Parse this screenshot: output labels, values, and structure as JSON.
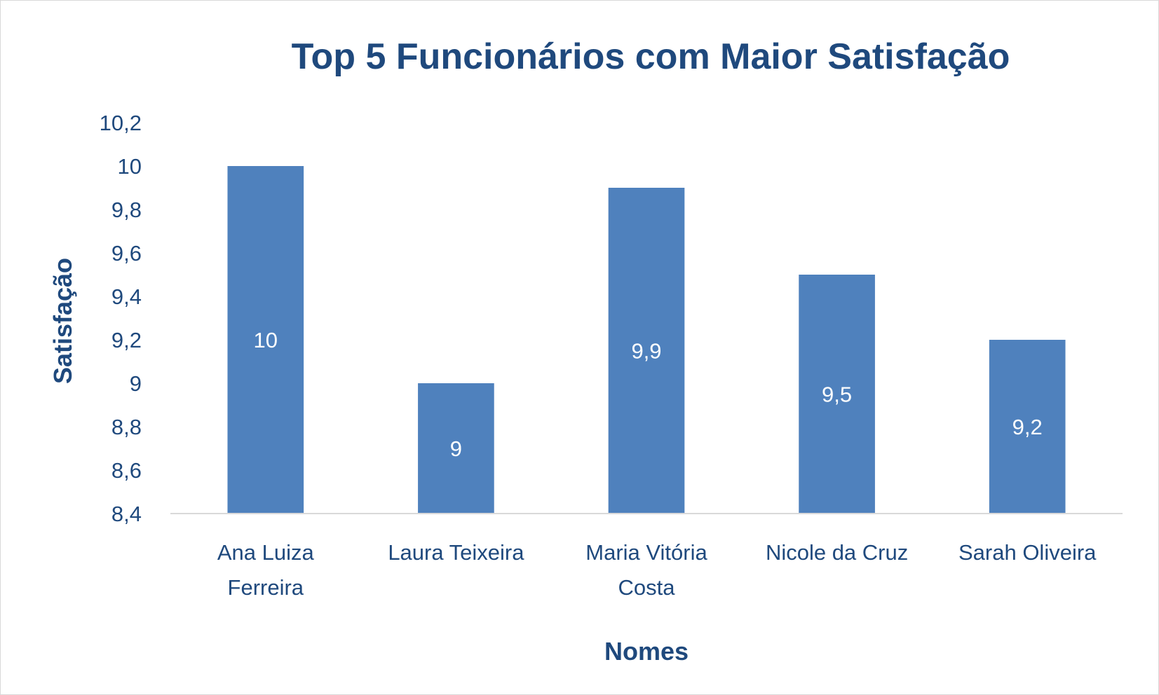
{
  "chart_data": {
    "type": "bar",
    "title": "Top 5 Funcionários com Maior Satisfação",
    "xlabel": "Nomes",
    "ylabel": "Satisfação",
    "categories": [
      [
        "Ana Luiza",
        "Ferreira"
      ],
      [
        "Laura Teixeira"
      ],
      [
        "Maria Vitória",
        "Costa"
      ],
      [
        "Nicole da Cruz"
      ],
      [
        "Sarah Oliveira"
      ]
    ],
    "values": [
      10,
      9,
      9.9,
      9.5,
      9.2
    ],
    "data_labels": [
      "10",
      "9",
      "9,9",
      "9,5",
      "9,2"
    ],
    "ylim": [
      8.4,
      10.2
    ],
    "yticks": [
      8.4,
      8.6,
      8.8,
      9,
      9.2,
      9.4,
      9.6,
      9.8,
      10,
      10.2
    ],
    "ytick_labels": [
      "8,4",
      "8,6",
      "8,8",
      "9",
      "9,2",
      "9,4",
      "9,6",
      "9,8",
      "10",
      "10,2"
    ],
    "grid": false,
    "legend": "none",
    "colors": {
      "bar": "#4f81bd",
      "text": "#1f497d",
      "data_label": "#ffffff",
      "axis_line": "#d9d9d9"
    }
  }
}
